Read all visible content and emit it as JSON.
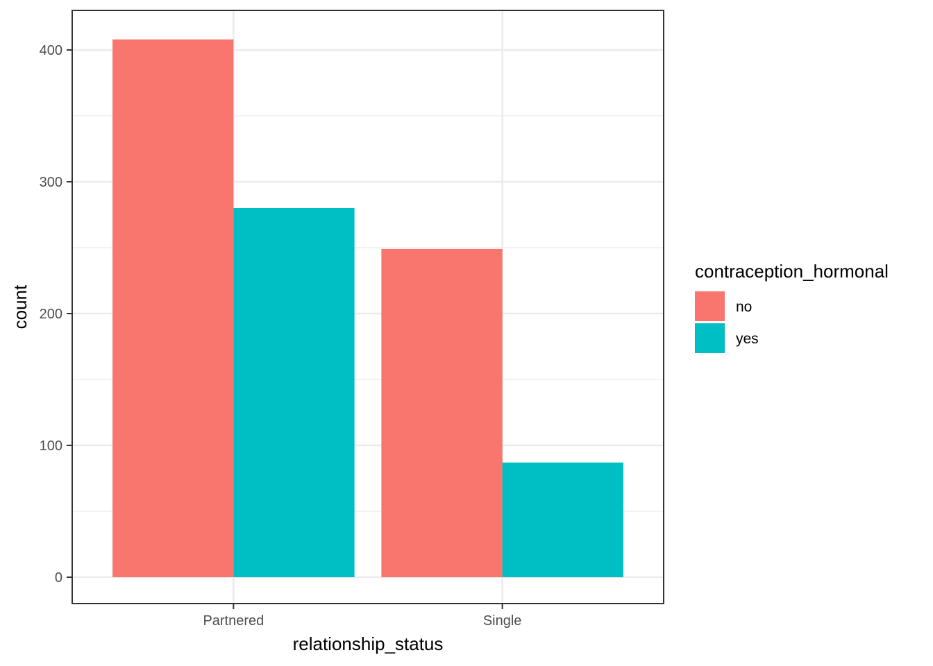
{
  "chart_data": {
    "type": "bar",
    "layout": "grouped",
    "categories": [
      "Partnered",
      "Single"
    ],
    "series": [
      {
        "name": "no",
        "color": "#F8766D",
        "values": [
          408,
          249
        ]
      },
      {
        "name": "yes",
        "color": "#00BFC4",
        "values": [
          280,
          87
        ]
      }
    ],
    "xlabel": "relationship_status",
    "ylabel": "count",
    "ylim": [
      -20,
      430
    ],
    "yticks": [
      0,
      100,
      200,
      300,
      400
    ],
    "y_minor_ticks": [
      50,
      150,
      250,
      350
    ],
    "grid": true,
    "legend": {
      "title": "contraception_hormonal",
      "placement": "right"
    },
    "theme": {
      "panel_border": "#333333",
      "grid_color": "#ebebeb"
    }
  }
}
